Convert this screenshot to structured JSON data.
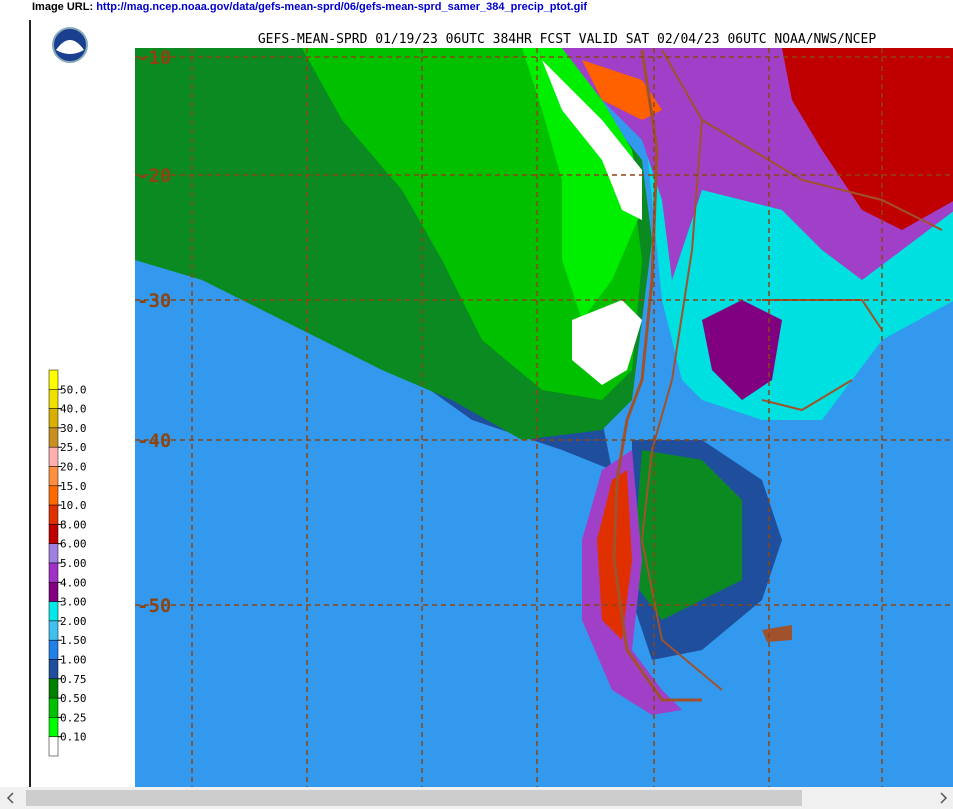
{
  "header": {
    "url_label": "Image URL:",
    "url": "http://mag.ncep.noaa.gov/data/gefs-mean-sprd/06/gefs-mean-sprd_samer_384_precip_ptot.gif"
  },
  "map": {
    "title": "GEFS-MEAN-SPRD 01/19/23 06UTC 384HR FCST VALID SAT 02/04/23 06UTC NOAA/NWS/NCEP",
    "latitude_labels": [
      "-10",
      "-20",
      "-30",
      "-40",
      "-50"
    ],
    "legend": {
      "labels": [
        "50.0",
        "40.0",
        "30.0",
        "25.0",
        "20.0",
        "15.0",
        "10.0",
        "8.00",
        "6.00",
        "5.00",
        "4.00",
        "3.00",
        "2.00",
        "1.50",
        "1.00",
        "0.75",
        "0.50",
        "0.25",
        "0.10"
      ],
      "colors": [
        "#ffff00",
        "#f0e000",
        "#d8b000",
        "#c89020",
        "#ffb0b0",
        "#ff9040",
        "#ff6a00",
        "#e03000",
        "#c00000",
        "#a080e0",
        "#a030c8",
        "#800080",
        "#00e8e8",
        "#40c0f0",
        "#2080e8",
        "#1f4f9c",
        "#008000",
        "#00c000",
        "#00ff00",
        "#ffffff"
      ]
    }
  }
}
